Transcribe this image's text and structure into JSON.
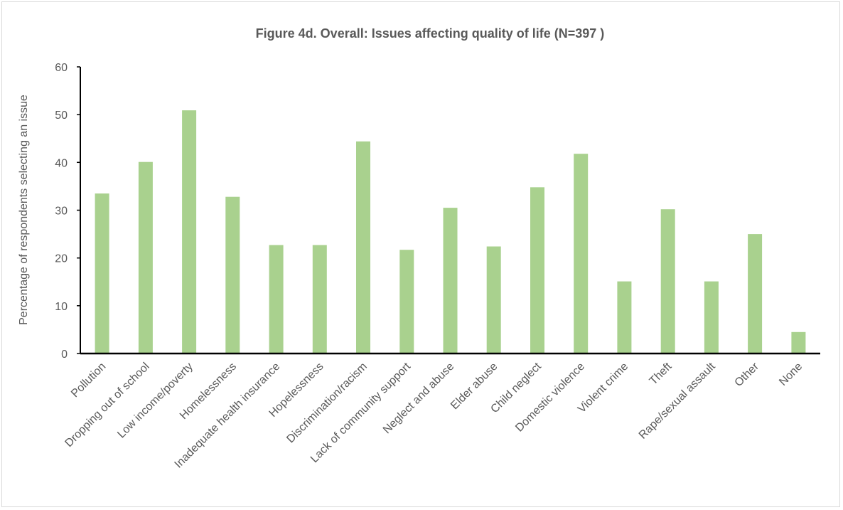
{
  "chart_data": {
    "type": "bar",
    "title": "Figure 4d. Overall: Issues affecting quality of life (N=397 )",
    "xlabel": "",
    "ylabel": "Percentage of respondents selecting an issue",
    "ylim": [
      0,
      60
    ],
    "yticks": [
      "0",
      "10",
      "20",
      "30",
      "40",
      "50",
      "60"
    ],
    "grid": false,
    "categories": [
      "Pollution",
      "Dropping out of school",
      "Low income/poverty",
      "Homelessness",
      "Inadequate health insurance",
      "Hopelessness",
      "Discrimination/racism",
      "Lack of community support",
      "Neglect and abuse",
      "Elder abuse",
      "Child neglect",
      "Domestic violence",
      "Violent crime",
      "Theft",
      "Rape/sexual assault",
      "Other",
      "None"
    ],
    "values": [
      33.5,
      40.1,
      50.9,
      32.8,
      22.7,
      22.7,
      44.4,
      21.7,
      30.5,
      22.4,
      34.8,
      41.8,
      15.1,
      30.2,
      15.1,
      25.0,
      4.5
    ],
    "bar_color": "#a9d18e",
    "axis_color": "#000000"
  }
}
